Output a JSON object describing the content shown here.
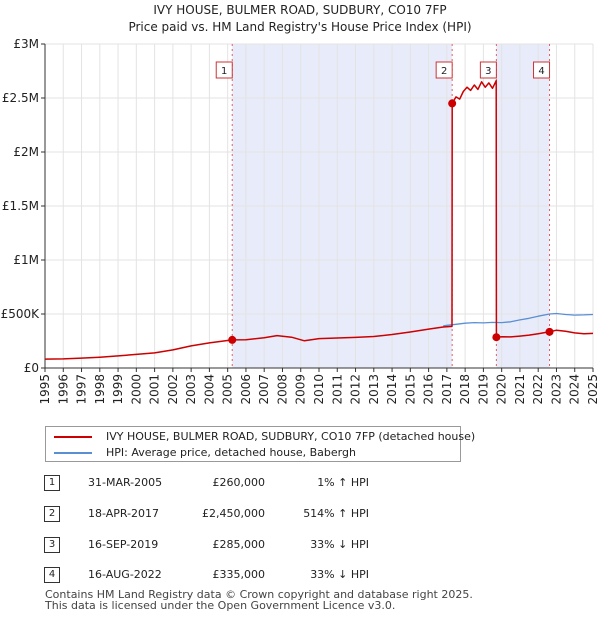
{
  "chart_data": {
    "type": "line",
    "title": "IVY HOUSE, BULMER ROAD, SUDBURY, CO10 7FP",
    "subtitle": "Price paid vs. HM Land Registry's House Price Index (HPI)",
    "xlabel": "",
    "ylabel": "",
    "xlim": [
      1995,
      2025
    ],
    "ylim": [
      0,
      3000000
    ],
    "y_ticks": [
      {
        "value": 0,
        "label": "£0"
      },
      {
        "value": 500000,
        "label": "£500K"
      },
      {
        "value": 1000000,
        "label": "£1M"
      },
      {
        "value": 1500000,
        "label": "£1.5M"
      },
      {
        "value": 2000000,
        "label": "£2M"
      },
      {
        "value": 2500000,
        "label": "£2.5M"
      },
      {
        "value": 3000000,
        "label": "£3M"
      }
    ],
    "x_ticks": [
      1995,
      1996,
      1997,
      1998,
      1999,
      2000,
      2001,
      2002,
      2003,
      2004,
      2005,
      2006,
      2007,
      2008,
      2009,
      2010,
      2011,
      2012,
      2013,
      2014,
      2015,
      2016,
      2017,
      2018,
      2019,
      2020,
      2021,
      2022,
      2023,
      2024,
      2025
    ],
    "grid": true,
    "shaded_ranges": [
      [
        2005.25,
        2017.29
      ],
      [
        2019.71,
        2022.62
      ]
    ],
    "series": [
      {
        "name": "IVY HOUSE, BULMER ROAD, SUDBURY, CO10 7FP (detached house)",
        "color": "#cc0000",
        "points": [
          [
            1995.0,
            82000
          ],
          [
            1996.0,
            84000
          ],
          [
            1997.0,
            92000
          ],
          [
            1998.0,
            100000
          ],
          [
            1999.0,
            112000
          ],
          [
            2000.0,
            126000
          ],
          [
            2001.0,
            140000
          ],
          [
            2002.0,
            168000
          ],
          [
            2003.0,
            205000
          ],
          [
            2004.0,
            232000
          ],
          [
            2005.25,
            260000
          ],
          [
            2006.0,
            262000
          ],
          [
            2007.0,
            280000
          ],
          [
            2007.7,
            300000
          ],
          [
            2008.5,
            285000
          ],
          [
            2009.2,
            252000
          ],
          [
            2010.0,
            272000
          ],
          [
            2011.0,
            278000
          ],
          [
            2012.0,
            283000
          ],
          [
            2013.0,
            292000
          ],
          [
            2014.0,
            310000
          ],
          [
            2015.0,
            333000
          ],
          [
            2016.0,
            360000
          ],
          [
            2016.8,
            380000
          ],
          [
            2017.28,
            385000
          ],
          [
            2017.29,
            2450000
          ],
          [
            2017.5,
            2510000
          ],
          [
            2017.7,
            2490000
          ],
          [
            2017.9,
            2560000
          ],
          [
            2018.1,
            2600000
          ],
          [
            2018.3,
            2570000
          ],
          [
            2018.5,
            2620000
          ],
          [
            2018.7,
            2580000
          ],
          [
            2018.9,
            2650000
          ],
          [
            2019.1,
            2600000
          ],
          [
            2019.3,
            2640000
          ],
          [
            2019.5,
            2590000
          ],
          [
            2019.7,
            2660000
          ],
          [
            2019.71,
            285000
          ],
          [
            2020.0,
            290000
          ],
          [
            2020.5,
            288000
          ],
          [
            2021.0,
            295000
          ],
          [
            2021.5,
            305000
          ],
          [
            2022.0,
            318000
          ],
          [
            2022.62,
            335000
          ],
          [
            2023.0,
            350000
          ],
          [
            2023.5,
            340000
          ],
          [
            2024.0,
            325000
          ],
          [
            2024.5,
            318000
          ],
          [
            2025.0,
            320000
          ]
        ]
      },
      {
        "name": "HPI: Average price, detached house, Babergh",
        "color": "#5b8fd4",
        "points": [
          [
            2016.8,
            390000
          ],
          [
            2017.0,
            395000
          ],
          [
            2017.5,
            405000
          ],
          [
            2018.0,
            415000
          ],
          [
            2018.5,
            420000
          ],
          [
            2019.0,
            418000
          ],
          [
            2019.5,
            422000
          ],
          [
            2020.0,
            420000
          ],
          [
            2020.5,
            428000
          ],
          [
            2021.0,
            445000
          ],
          [
            2021.5,
            460000
          ],
          [
            2022.0,
            480000
          ],
          [
            2022.62,
            500000
          ],
          [
            2023.0,
            505000
          ],
          [
            2023.5,
            495000
          ],
          [
            2024.0,
            490000
          ],
          [
            2024.5,
            492000
          ],
          [
            2025.0,
            495000
          ]
        ]
      }
    ],
    "markers": [
      {
        "id": "1",
        "x": 2005.25,
        "y": 260000
      },
      {
        "id": "2",
        "x": 2017.29,
        "y": 2450000
      },
      {
        "id": "3",
        "x": 2019.71,
        "y": 285000
      },
      {
        "id": "4",
        "x": 2022.62,
        "y": 335000
      }
    ]
  },
  "legend": {
    "items": [
      {
        "label": "IVY HOUSE, BULMER ROAD, SUDBURY, CO10 7FP (detached house)",
        "color": "#cc0000"
      },
      {
        "label": "HPI: Average price, detached house, Babergh",
        "color": "#5b8fd4"
      }
    ]
  },
  "transactions": [
    {
      "num": "1",
      "date": "31-MAR-2005",
      "price": "£260,000",
      "hpi": "1% ↑ HPI"
    },
    {
      "num": "2",
      "date": "18-APR-2017",
      "price": "£2,450,000",
      "hpi": "514% ↑ HPI"
    },
    {
      "num": "3",
      "date": "16-SEP-2019",
      "price": "£285,000",
      "hpi": "33% ↓ HPI"
    },
    {
      "num": "4",
      "date": "16-AUG-2022",
      "price": "£335,000",
      "hpi": "33% ↓ HPI"
    }
  ],
  "footer": {
    "line1": "Contains HM Land Registry data © Crown copyright and database right 2025.",
    "line2": "This data is licensed under the Open Government Licence v3.0."
  }
}
